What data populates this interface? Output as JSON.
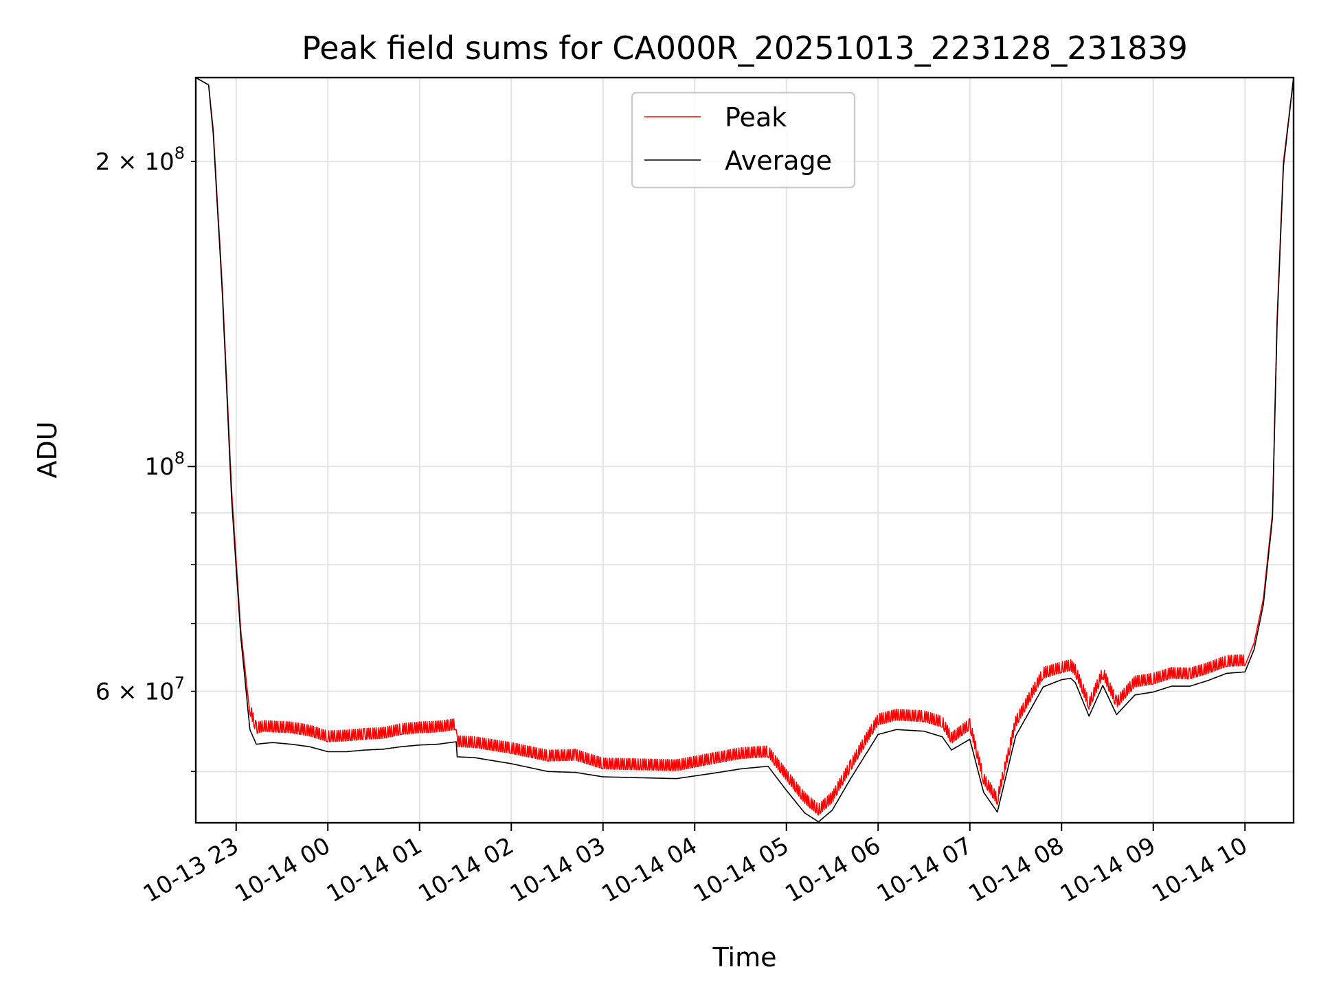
{
  "chart_data": {
    "type": "line",
    "title": "Peak field sums for CA000R_20251013_223128_231839",
    "xlabel": "Time",
    "ylabel": "ADU",
    "yscale": "log",
    "ylim": [
      44500000,
      242000000
    ],
    "xlim_hours": [
      -0.44,
      11.53
    ],
    "x_ticks": [
      {
        "label": "10-13 23",
        "value": 0
      },
      {
        "label": "10-14 00",
        "value": 1
      },
      {
        "label": "10-14 01",
        "value": 2
      },
      {
        "label": "10-14 02",
        "value": 3
      },
      {
        "label": "10-14 03",
        "value": 4
      },
      {
        "label": "10-14 04",
        "value": 5
      },
      {
        "label": "10-14 05",
        "value": 6
      },
      {
        "label": "10-14 06",
        "value": 7
      },
      {
        "label": "10-14 07",
        "value": 8
      },
      {
        "label": "10-14 08",
        "value": 9
      },
      {
        "label": "10-14 09",
        "value": 10
      },
      {
        "label": "10-14 10",
        "value": 11
      }
    ],
    "y_ticks_major": [
      {
        "label": "10",
        "exp": "8",
        "value": 100000000
      }
    ],
    "y_ticks_minor": [
      {
        "label": "6 × 10",
        "exp": "7",
        "value": 60000000
      },
      {
        "label": "2 × 10",
        "exp": "8",
        "value": 200000000
      }
    ],
    "y_gridlines": [
      50000000,
      60000000,
      70000000,
      80000000,
      90000000,
      100000000,
      200000000
    ],
    "grid": true,
    "legend_position": "upper center",
    "series": [
      {
        "name": "Peak",
        "color": "#ff0000",
        "x": [
          -0.44,
          -0.3,
          -0.25,
          -0.15,
          -0.05,
          0.05,
          0.15,
          0.22,
          0.3,
          0.4,
          0.6,
          0.8,
          1.0,
          1.2,
          1.4,
          1.6,
          1.8,
          2.0,
          2.2,
          2.4,
          2.41,
          2.6,
          3.0,
          3.4,
          3.7,
          4.0,
          4.4,
          4.8,
          5.2,
          5.5,
          5.8,
          6.0,
          6.2,
          6.35,
          6.5,
          6.7,
          6.9,
          7.0,
          7.2,
          7.5,
          7.7,
          7.8,
          8.0,
          8.15,
          8.3,
          8.5,
          8.8,
          9.0,
          9.1,
          9.15,
          9.3,
          9.45,
          9.6,
          9.8,
          10.0,
          10.2,
          10.4,
          10.6,
          10.8,
          11.0,
          11.1,
          11.2,
          11.3,
          11.35,
          11.42,
          11.53
        ],
        "y": [
          242000000,
          238000000,
          215000000,
          150000000,
          95000000,
          69000000,
          57000000,
          54500000,
          54800000,
          54700000,
          54600000,
          54200000,
          53500000,
          53600000,
          53800000,
          53900000,
          54400000,
          54600000,
          54700000,
          55000000,
          52900000,
          52800000,
          52100000,
          51200000,
          51300000,
          50300000,
          50200000,
          50100000,
          50900000,
          51500000,
          51700000,
          49000000,
          46500000,
          45300000,
          46600000,
          50100000,
          53800000,
          55600000,
          56200000,
          56000000,
          55300000,
          53300000,
          55000000,
          48600000,
          46400000,
          55300000,
          61800000,
          62600000,
          62900000,
          62200000,
          57600000,
          61900000,
          57800000,
          60600000,
          61000000,
          61800000,
          61700000,
          62500000,
          63500000,
          63600000,
          67000000,
          74000000,
          90000000,
          140000000,
          200000000,
          242000000
        ]
      },
      {
        "name": "Average",
        "color": "#000000",
        "x": [
          -0.44,
          -0.3,
          -0.25,
          -0.15,
          -0.05,
          0.05,
          0.15,
          0.22,
          0.3,
          0.4,
          0.6,
          0.8,
          1.0,
          1.2,
          1.4,
          1.6,
          1.8,
          2.0,
          2.2,
          2.4,
          2.41,
          2.6,
          3.0,
          3.4,
          3.7,
          4.0,
          4.4,
          4.8,
          5.2,
          5.5,
          5.8,
          6.0,
          6.2,
          6.35,
          6.5,
          6.7,
          6.9,
          7.0,
          7.2,
          7.5,
          7.7,
          7.8,
          8.0,
          8.15,
          8.3,
          8.5,
          8.8,
          9.0,
          9.1,
          9.15,
          9.3,
          9.45,
          9.6,
          9.8,
          10.0,
          10.2,
          10.4,
          10.6,
          10.8,
          11.0,
          11.1,
          11.2,
          11.3,
          11.35,
          11.42,
          11.53
        ],
        "y": [
          242000000,
          238000000,
          213000000,
          148000000,
          93000000,
          68000000,
          55000000,
          53200000,
          53300000,
          53400000,
          53200000,
          52900000,
          52300000,
          52300000,
          52500000,
          52600000,
          52900000,
          53100000,
          53200000,
          53500000,
          51700000,
          51600000,
          50900000,
          50000000,
          49900000,
          49400000,
          49300000,
          49200000,
          49800000,
          50300000,
          50600000,
          47900000,
          45500000,
          44600000,
          45800000,
          49200000,
          52600000,
          54400000,
          55000000,
          54800000,
          54100000,
          52500000,
          53800000,
          47700000,
          45600000,
          54200000,
          60600000,
          61600000,
          61800000,
          61200000,
          56700000,
          60800000,
          56900000,
          59500000,
          59900000,
          60700000,
          60700000,
          61500000,
          62500000,
          62700000,
          66000000,
          73000000,
          89000000,
          138000000,
          198000000,
          242000000
        ]
      }
    ]
  }
}
